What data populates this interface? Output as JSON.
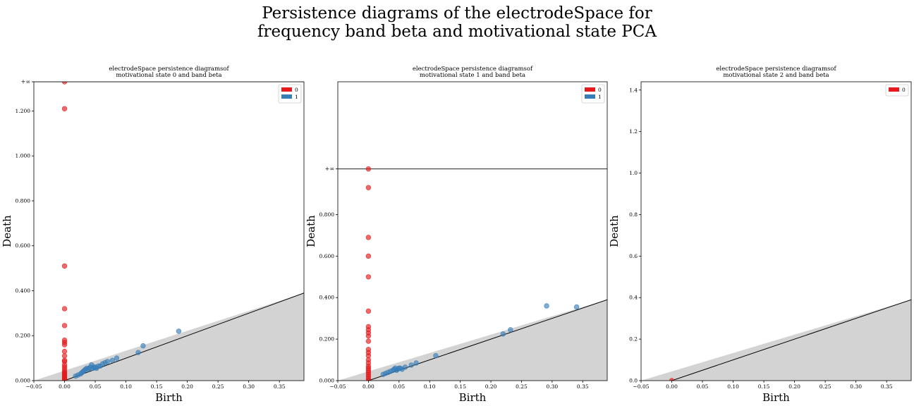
{
  "suptitle": {
    "line1": "Persistence diagrams of the electrodeSpace for",
    "line2": "frequency band beta and motivational state PCA"
  },
  "colors": {
    "h0": "#e41a1c",
    "h1": "#377eb8",
    "shade": "#d3d3d3",
    "axis": "#000000"
  },
  "chart_data": [
    {
      "type": "scatter",
      "title": [
        "electrodeSpace persistence diagramsof",
        "motivational state 0 and band  beta"
      ],
      "xlabel": "Birth",
      "ylabel": "Death",
      "xlim": [
        -0.05,
        0.39
      ],
      "ylim": [
        0,
        1.33
      ],
      "xticks": [
        -0.05,
        0,
        0.05,
        0.1,
        0.15,
        0.2,
        0.25,
        0.3,
        0.35
      ],
      "xticklabels": [
        "−0.05",
        "0.00",
        "0.05",
        "0.10",
        "0.15",
        "0.20",
        "0.25",
        "0.30",
        "0.35"
      ],
      "yticks": [
        0,
        0.2,
        0.4,
        0.6,
        0.8,
        1.0,
        1.2
      ],
      "yticklabels": [
        "0.000",
        "0.200",
        "0.400",
        "0.600",
        "0.800",
        "1.000",
        "1.200"
      ],
      "infinity": {
        "value": 1.33,
        "label": "+∞"
      },
      "legend": {
        "placement": "top-right",
        "entries": [
          "0",
          "1"
        ]
      },
      "series": [
        {
          "name": "0",
          "points": [
            [
              0,
              1.33
            ],
            [
              0,
              1.21
            ],
            [
              0,
              0.51
            ],
            [
              0,
              0.32
            ],
            [
              0,
              0.245
            ],
            [
              0,
              0.18
            ],
            [
              0,
              0.17
            ],
            [
              0,
              0.16
            ],
            [
              0,
              0.13
            ],
            [
              0,
              0.11
            ],
            [
              0,
              0.09
            ],
            [
              0,
              0.085
            ],
            [
              0,
              0.07
            ],
            [
              0,
              0.06
            ],
            [
              0,
              0.05
            ],
            [
              0,
              0.04
            ],
            [
              0,
              0.035
            ],
            [
              0,
              0.03
            ],
            [
              0,
              0.025
            ],
            [
              0,
              0.02
            ],
            [
              0,
              0.015
            ],
            [
              0,
              0.01
            ],
            [
              0,
              0.005
            ],
            [
              0,
              0.0
            ]
          ]
        },
        {
          "name": "1",
          "points": [
            [
              0.018,
              0.02
            ],
            [
              0.022,
              0.025
            ],
            [
              0.026,
              0.03
            ],
            [
              0.028,
              0.035
            ],
            [
              0.03,
              0.04
            ],
            [
              0.032,
              0.045
            ],
            [
              0.034,
              0.05
            ],
            [
              0.036,
              0.055
            ],
            [
              0.038,
              0.05
            ],
            [
              0.04,
              0.055
            ],
            [
              0.042,
              0.06
            ],
            [
              0.044,
              0.07
            ],
            [
              0.046,
              0.055
            ],
            [
              0.048,
              0.06
            ],
            [
              0.05,
              0.06
            ],
            [
              0.052,
              0.055
            ],
            [
              0.055,
              0.065
            ],
            [
              0.058,
              0.065
            ],
            [
              0.062,
              0.075
            ],
            [
              0.066,
              0.08
            ],
            [
              0.07,
              0.085
            ],
            [
              0.078,
              0.09
            ],
            [
              0.085,
              0.1
            ],
            [
              0.12,
              0.125
            ],
            [
              0.128,
              0.155
            ],
            [
              0.186,
              0.22
            ]
          ]
        }
      ]
    },
    {
      "type": "scatter",
      "title": [
        "electrodeSpace persistence diagramsof",
        "motivational state 1 and band  beta"
      ],
      "xlabel": "Birth",
      "ylabel": "Death",
      "xlim": [
        -0.05,
        0.39
      ],
      "ylim": [
        0,
        1.44
      ],
      "xticks": [
        -0.05,
        0,
        0.05,
        0.1,
        0.15,
        0.2,
        0.25,
        0.3,
        0.35
      ],
      "xticklabels": [
        "−0.05",
        "0.00",
        "0.05",
        "0.10",
        "0.15",
        "0.20",
        "0.25",
        "0.30",
        "0.35"
      ],
      "yticks": [
        0,
        0.2,
        0.4,
        0.6,
        0.8
      ],
      "yticklabels": [
        "0.000",
        "0.200",
        "0.400",
        "0.600",
        "0.800"
      ],
      "infinity": {
        "value": 1.02,
        "label": "+∞"
      },
      "legend": {
        "placement": "top-right",
        "entries": [
          "0",
          "1"
        ]
      },
      "series": [
        {
          "name": "0",
          "points": [
            [
              0,
              1.02
            ],
            [
              0,
              0.93
            ],
            [
              0,
              0.69
            ],
            [
              0,
              0.6
            ],
            [
              0,
              0.5
            ],
            [
              0,
              0.335
            ],
            [
              0,
              0.26
            ],
            [
              0,
              0.245
            ],
            [
              0,
              0.23
            ],
            [
              0,
              0.215
            ],
            [
              0,
              0.19
            ],
            [
              0,
              0.15
            ],
            [
              0,
              0.135
            ],
            [
              0,
              0.12
            ],
            [
              0,
              0.1
            ],
            [
              0,
              0.085
            ],
            [
              0,
              0.07
            ],
            [
              0,
              0.06
            ],
            [
              0,
              0.05
            ],
            [
              0,
              0.04
            ],
            [
              0,
              0.03
            ],
            [
              0,
              0.02
            ],
            [
              0,
              0.01
            ],
            [
              0,
              0.0
            ]
          ]
        },
        {
          "name": "1",
          "points": [
            [
              0.024,
              0.03
            ],
            [
              0.028,
              0.035
            ],
            [
              0.032,
              0.04
            ],
            [
              0.036,
              0.045
            ],
            [
              0.04,
              0.05
            ],
            [
              0.042,
              0.055
            ],
            [
              0.044,
              0.06
            ],
            [
              0.046,
              0.05
            ],
            [
              0.048,
              0.055
            ],
            [
              0.05,
              0.06
            ],
            [
              0.052,
              0.06
            ],
            [
              0.055,
              0.055
            ],
            [
              0.06,
              0.065
            ],
            [
              0.07,
              0.075
            ],
            [
              0.078,
              0.085
            ],
            [
              0.11,
              0.12
            ],
            [
              0.22,
              0.225
            ],
            [
              0.232,
              0.245
            ],
            [
              0.291,
              0.36
            ],
            [
              0.34,
              0.355
            ]
          ]
        }
      ]
    },
    {
      "type": "scatter",
      "title": [
        "electrodeSpace persistence diagramsof",
        "motivational state 2 and band  beta"
      ],
      "xlabel": "Birth",
      "ylabel": "Death",
      "xlim": [
        -0.05,
        0.39
      ],
      "ylim": [
        0,
        1.44
      ],
      "xticks": [
        -0.05,
        0,
        0.05,
        0.1,
        0.15,
        0.2,
        0.25,
        0.3,
        0.35
      ],
      "xticklabels": [
        "−0.05",
        "0.00",
        "0.05",
        "0.10",
        "0.15",
        "0.20",
        "0.25",
        "0.30",
        "0.35"
      ],
      "yticks": [
        0,
        0.2,
        0.4,
        0.6,
        0.8,
        1.0,
        1.2,
        1.4
      ],
      "yticklabels": [
        "0.0",
        "0.2",
        "0.4",
        "0.6",
        "0.8",
        "1.0",
        "1.2",
        "1.4"
      ],
      "infinity": null,
      "legend": {
        "placement": "top-right",
        "entries": [
          "0"
        ]
      },
      "series": [
        {
          "name": "0",
          "points": [
            [
              0,
              0.0
            ]
          ]
        }
      ]
    }
  ]
}
